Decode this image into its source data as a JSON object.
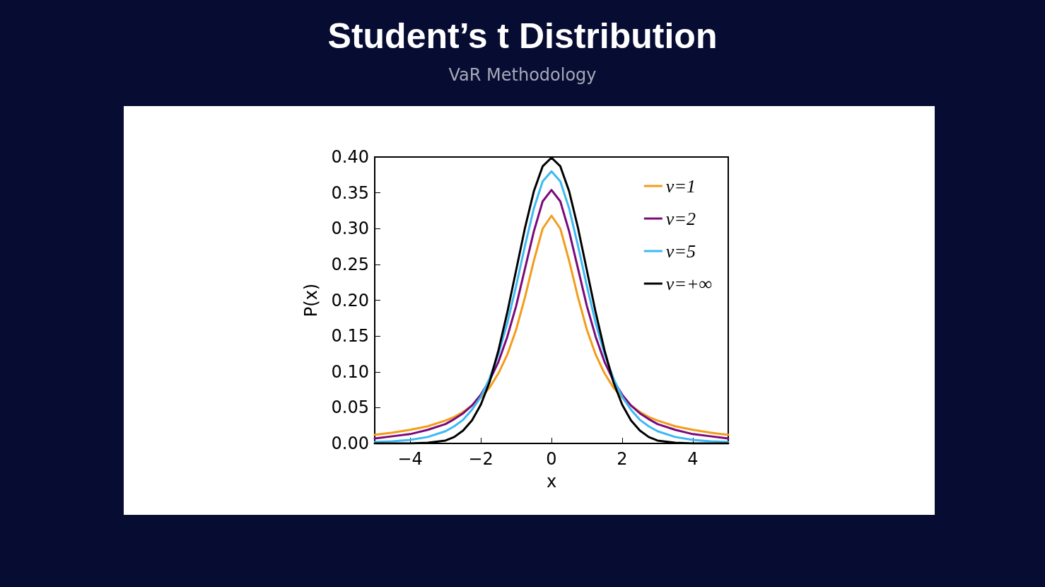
{
  "chart_data": {
    "type": "line",
    "title": "Student’s t Distribution",
    "subtitle": "VaR Methodology",
    "xlabel": "x",
    "ylabel": "P(x)",
    "x": [
      -5,
      -4.5,
      -4,
      -3.5,
      -3,
      -2.75,
      -2.5,
      -2.25,
      -2,
      -1.75,
      -1.5,
      -1.25,
      -1,
      -0.75,
      -0.5,
      -0.25,
      0,
      0.25,
      0.5,
      0.75,
      1,
      1.25,
      1.5,
      1.75,
      2,
      2.25,
      2.5,
      2.75,
      3,
      3.5,
      4,
      4.5,
      5
    ],
    "series": [
      {
        "name": "ν=1",
        "color": "#f39c1a",
        "values": [
          0.012,
          0.015,
          0.019,
          0.024,
          0.032,
          0.037,
          0.044,
          0.053,
          0.064,
          0.078,
          0.098,
          0.124,
          0.159,
          0.204,
          0.255,
          0.3,
          0.318,
          0.3,
          0.255,
          0.204,
          0.159,
          0.124,
          0.098,
          0.078,
          0.064,
          0.053,
          0.044,
          0.037,
          0.032,
          0.024,
          0.019,
          0.015,
          0.012
        ]
      },
      {
        "name": "ν=2",
        "color": "#7a0a7a",
        "values": [
          0.007,
          0.01,
          0.013,
          0.019,
          0.027,
          0.034,
          0.042,
          0.053,
          0.068,
          0.088,
          0.114,
          0.149,
          0.192,
          0.244,
          0.296,
          0.338,
          0.354,
          0.338,
          0.296,
          0.244,
          0.192,
          0.149,
          0.114,
          0.088,
          0.068,
          0.053,
          0.042,
          0.034,
          0.027,
          0.019,
          0.013,
          0.01,
          0.007
        ]
      },
      {
        "name": "ν=5",
        "color": "#3cb9f4",
        "values": [
          0.002,
          0.003,
          0.005,
          0.009,
          0.017,
          0.024,
          0.033,
          0.047,
          0.065,
          0.091,
          0.125,
          0.168,
          0.22,
          0.276,
          0.328,
          0.366,
          0.38,
          0.366,
          0.328,
          0.276,
          0.22,
          0.168,
          0.125,
          0.091,
          0.065,
          0.047,
          0.033,
          0.024,
          0.017,
          0.009,
          0.005,
          0.003,
          0.002
        ]
      },
      {
        "name": "ν=+∞",
        "color": "#000000",
        "values": [
          0,
          0,
          0,
          0.001,
          0.004,
          0.009,
          0.018,
          0.032,
          0.054,
          0.086,
          0.13,
          0.183,
          0.242,
          0.301,
          0.352,
          0.387,
          0.399,
          0.387,
          0.352,
          0.301,
          0.242,
          0.183,
          0.13,
          0.086,
          0.054,
          0.032,
          0.018,
          0.009,
          0.004,
          0.001,
          0,
          0,
          0
        ]
      }
    ],
    "xlim": [
      -5,
      5
    ],
    "xticks": [
      {
        "value": -4,
        "label": "−4"
      },
      {
        "value": -2,
        "label": "−2"
      },
      0,
      2,
      4
    ],
    "ylim": [
      0,
      0.4
    ],
    "yticks": [
      {
        "value": 0,
        "label": "0.00"
      },
      {
        "value": 0.05,
        "label": "0.05"
      },
      {
        "value": 0.1,
        "label": "0.10"
      },
      {
        "value": 0.15,
        "label": "0.15"
      },
      {
        "value": 0.2,
        "label": "0.20"
      },
      {
        "value": 0.25,
        "label": "0.25"
      },
      {
        "value": 0.3,
        "label": "0.30"
      },
      {
        "value": 0.35,
        "label": "0.35"
      },
      {
        "value": 0.4,
        "label": "0.40"
      }
    ],
    "grid": false,
    "legend": "top right",
    "marker": "none",
    "line_style": "solid"
  }
}
